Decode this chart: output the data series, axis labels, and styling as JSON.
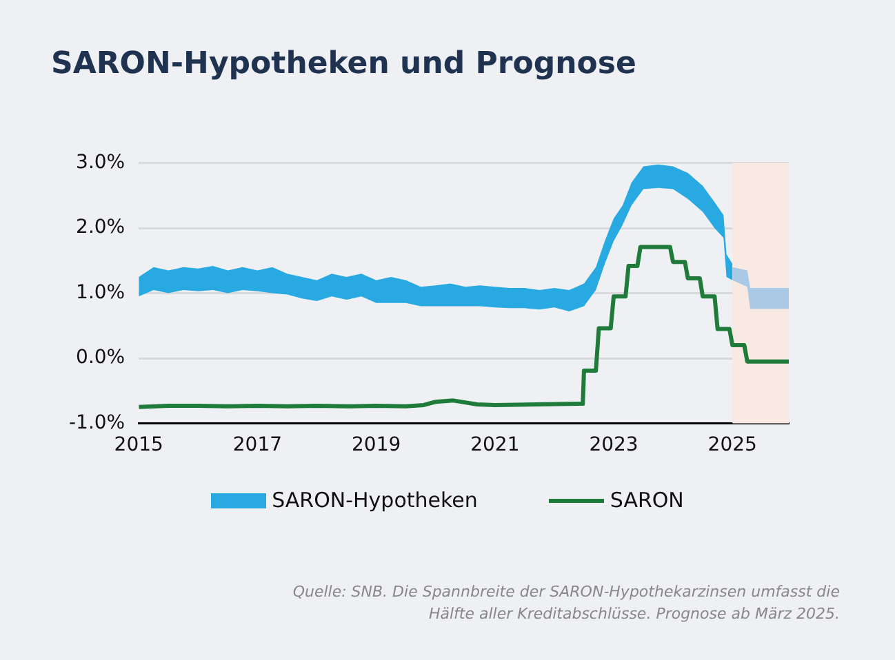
{
  "chart_data": {
    "type": "step",
    "title": "SARON-Hypotheken und Prognose",
    "xlim": [
      2015,
      2025.95
    ],
    "xticks": [
      2015,
      2017,
      2019,
      2021,
      2023,
      2025
    ],
    "ylim": [
      -1,
      3
    ],
    "yticks": [
      {
        "value": -1,
        "label": "-1.0%"
      },
      {
        "value": 0,
        "label": "0.0%"
      },
      {
        "value": 1,
        "label": "1.0%"
      },
      {
        "value": 2,
        "label": "2.0%"
      },
      {
        "value": 3,
        "label": "3.0%"
      }
    ],
    "grid": "y",
    "legend": "bottom",
    "series": [
      {
        "name": "SARON-Hypotheken",
        "type": "area",
        "color": "#29a9e1",
        "x": [
          2015,
          2015.25,
          2015.5,
          2015.75,
          2016,
          2016.25,
          2016.5,
          2016.75,
          2017,
          2017.25,
          2017.5,
          2017.75,
          2018,
          2018.25,
          2018.5,
          2018.75,
          2019,
          2019.25,
          2019.5,
          2019.75,
          2020,
          2020.25,
          2020.5,
          2020.75,
          2021,
          2021.25,
          2021.5,
          2021.75,
          2022,
          2022.25,
          2022.5,
          2022.7,
          2022.85,
          2023,
          2023.15,
          2023.3,
          2023.5,
          2023.75,
          2024,
          2024.25,
          2024.5,
          2024.7,
          2024.85,
          2024.9,
          2025
        ],
        "values": [
          null,
          null,
          null,
          null,
          null,
          null,
          null,
          null,
          null,
          null,
          null,
          null,
          null,
          null,
          null,
          null,
          null,
          null,
          null,
          null,
          null,
          null,
          null,
          null,
          null,
          null,
          null,
          null,
          null,
          null,
          null,
          null,
          null,
          null,
          null,
          null,
          null,
          null,
          null,
          null,
          null,
          null,
          null,
          null,
          null
        ],
        "upper": [
          1.25,
          1.4,
          1.35,
          1.4,
          1.38,
          1.42,
          1.35,
          1.4,
          1.35,
          1.4,
          1.3,
          1.25,
          1.2,
          1.3,
          1.25,
          1.3,
          1.2,
          1.25,
          1.2,
          1.1,
          1.12,
          1.15,
          1.1,
          1.12,
          1.1,
          1.08,
          1.08,
          1.05,
          1.08,
          1.05,
          1.15,
          1.4,
          1.8,
          2.15,
          2.35,
          2.7,
          2.95,
          2.98,
          2.95,
          2.85,
          2.65,
          2.4,
          2.2,
          1.6,
          1.45
        ],
        "lower": [
          0.95,
          1.05,
          1.0,
          1.05,
          1.03,
          1.05,
          1.0,
          1.05,
          1.03,
          1.0,
          0.98,
          0.92,
          0.88,
          0.95,
          0.9,
          0.95,
          0.85,
          0.85,
          0.85,
          0.8,
          0.8,
          0.8,
          0.8,
          0.8,
          0.78,
          0.77,
          0.77,
          0.75,
          0.78,
          0.72,
          0.8,
          1.05,
          1.45,
          1.8,
          2.05,
          2.35,
          2.6,
          2.62,
          2.6,
          2.45,
          2.25,
          2.0,
          1.85,
          1.25,
          1.2
        ]
      },
      {
        "type": "area",
        "color": "#a9c9e6",
        "x": [
          2025,
          2025.25,
          2025.3,
          2025.95
        ],
        "values": [
          null,
          null,
          null,
          null
        ],
        "upper": [
          1.4,
          1.35,
          1.08,
          1.08
        ],
        "lower": [
          1.2,
          1.1,
          0.76,
          0.76
        ]
      },
      {
        "name": "SARON",
        "color": "#1e7b3a",
        "x": [
          2015,
          2015.5,
          2016,
          2016.5,
          2017,
          2017.5,
          2018,
          2018.5,
          2019,
          2019.5,
          2019.8,
          2020,
          2020.3,
          2020.7,
          2021,
          2021.7,
          2022.4,
          2022.48,
          2022.5,
          2022.7,
          2022.75,
          2022.95,
          2023.0,
          2023.2,
          2023.25,
          2023.4,
          2023.45,
          2023.95,
          2024.0,
          2024.2,
          2024.25,
          2024.45,
          2024.5,
          2024.7,
          2024.75,
          2024.95,
          2025.0,
          2025.2,
          2025.25,
          2025.4,
          2025.95
        ],
        "values": [
          -0.75,
          -0.73,
          -0.73,
          -0.74,
          -0.73,
          -0.74,
          -0.73,
          -0.74,
          -0.73,
          -0.74,
          -0.72,
          -0.67,
          -0.65,
          -0.71,
          -0.72,
          -0.71,
          -0.7,
          -0.7,
          -0.19,
          -0.19,
          0.46,
          0.46,
          0.95,
          0.95,
          1.42,
          1.42,
          1.71,
          1.71,
          1.48,
          1.48,
          1.23,
          1.23,
          0.95,
          0.95,
          0.45,
          0.45,
          0.2,
          0.2,
          -0.05,
          -0.05,
          -0.05
        ]
      }
    ],
    "bands": [
      {
        "axis": "x",
        "from": 2025,
        "to": 2025.95,
        "color": "#f8e9e3"
      }
    ],
    "annotations": [
      "Quelle: SNB. Die Spannbreite der SARON-Hypothekarzinsen umfasst die Hälfte aller Kreditabschlüsse. Prognose ab März 2025."
    ]
  }
}
